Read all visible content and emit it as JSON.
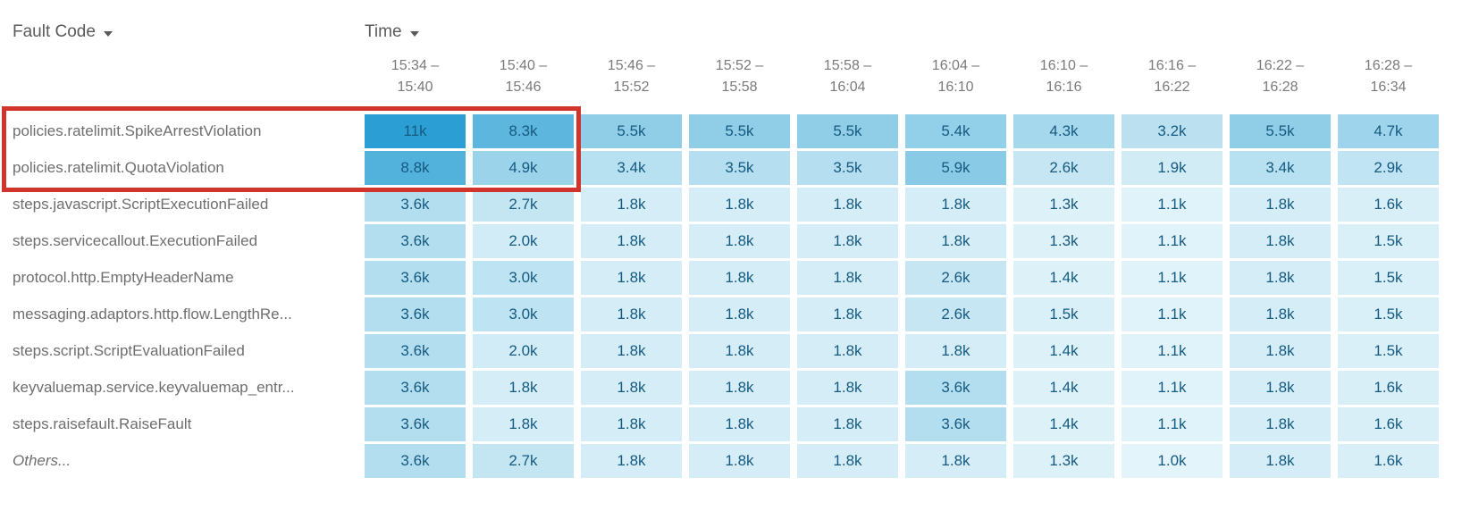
{
  "header": {
    "fault_code_label": "Fault Code",
    "time_label": "Time"
  },
  "colors": {
    "cell_text": "#155a80",
    "row_label_text": "#6e6e6e",
    "time_header_text": "#7a7a7a",
    "sort_header_text": "#5a5a5a"
  },
  "annotation": {
    "type": "highlight-rectangle",
    "color": "#d0342c",
    "highlighted_rows": [
      "policies.ratelimit.SpikeArrestViolation",
      "policies.ratelimit.QuotaViolation"
    ],
    "highlighted_columns": [
      "15:34 – 15:40",
      "15:40 – 15:46"
    ]
  },
  "chart_data": {
    "type": "heatmap",
    "x_axis_label": "Time",
    "y_axis_label": "Fault Code",
    "legend": "none",
    "grid": "off",
    "x_categories": [
      "15:34 – 15:40",
      "15:40 – 15:46",
      "15:46 – 15:52",
      "15:52 – 15:58",
      "15:58 – 16:04",
      "16:04 – 16:10",
      "16:10 – 16:16",
      "16:16 – 16:22",
      "16:22 – 16:28",
      "16:28 – 16:34"
    ],
    "y_categories": [
      "policies.ratelimit.SpikeArrestViolation",
      "policies.ratelimit.QuotaViolation",
      "steps.javascript.ScriptExecutionFailed",
      "steps.servicecallout.ExecutionFailed",
      "protocol.http.EmptyHeaderName",
      "messaging.adaptors.http.flow.LengthRe...",
      "steps.script.ScriptEvaluationFailed",
      "keyvaluemap.service.keyvaluemap_entr...",
      "steps.raisefault.RaiseFault",
      "Others..."
    ],
    "last_row_italic": true,
    "values": [
      [
        11000,
        8300,
        5500,
        5500,
        5500,
        5400,
        4300,
        3200,
        5500,
        4700
      ],
      [
        8800,
        4900,
        3400,
        3500,
        3500,
        5900,
        2600,
        1900,
        3400,
        2900
      ],
      [
        3600,
        2700,
        1800,
        1800,
        1800,
        1800,
        1300,
        1100,
        1800,
        1600
      ],
      [
        3600,
        2000,
        1800,
        1800,
        1800,
        1800,
        1300,
        1100,
        1800,
        1500
      ],
      [
        3600,
        3000,
        1800,
        1800,
        1800,
        2600,
        1400,
        1100,
        1800,
        1500
      ],
      [
        3600,
        3000,
        1800,
        1800,
        1800,
        2600,
        1500,
        1100,
        1800,
        1500
      ],
      [
        3600,
        2000,
        1800,
        1800,
        1800,
        1800,
        1400,
        1100,
        1800,
        1500
      ],
      [
        3600,
        1800,
        1800,
        1800,
        1800,
        3600,
        1400,
        1100,
        1800,
        1600
      ],
      [
        3600,
        1800,
        1800,
        1800,
        1800,
        3600,
        1400,
        1100,
        1800,
        1600
      ],
      [
        3600,
        2700,
        1800,
        1800,
        1800,
        1800,
        1300,
        1000,
        1800,
        1600
      ]
    ],
    "value_labels": [
      [
        "11k",
        "8.3k",
        "5.5k",
        "5.5k",
        "5.5k",
        "5.4k",
        "4.3k",
        "3.2k",
        "5.5k",
        "4.7k"
      ],
      [
        "8.8k",
        "4.9k",
        "3.4k",
        "3.5k",
        "3.5k",
        "5.9k",
        "2.6k",
        "1.9k",
        "3.4k",
        "2.9k"
      ],
      [
        "3.6k",
        "2.7k",
        "1.8k",
        "1.8k",
        "1.8k",
        "1.8k",
        "1.3k",
        "1.1k",
        "1.8k",
        "1.6k"
      ],
      [
        "3.6k",
        "2.0k",
        "1.8k",
        "1.8k",
        "1.8k",
        "1.8k",
        "1.3k",
        "1.1k",
        "1.8k",
        "1.5k"
      ],
      [
        "3.6k",
        "3.0k",
        "1.8k",
        "1.8k",
        "1.8k",
        "2.6k",
        "1.4k",
        "1.1k",
        "1.8k",
        "1.5k"
      ],
      [
        "3.6k",
        "3.0k",
        "1.8k",
        "1.8k",
        "1.8k",
        "2.6k",
        "1.5k",
        "1.1k",
        "1.8k",
        "1.5k"
      ],
      [
        "3.6k",
        "2.0k",
        "1.8k",
        "1.8k",
        "1.8k",
        "1.8k",
        "1.4k",
        "1.1k",
        "1.8k",
        "1.5k"
      ],
      [
        "3.6k",
        "1.8k",
        "1.8k",
        "1.8k",
        "1.8k",
        "3.6k",
        "1.4k",
        "1.1k",
        "1.8k",
        "1.6k"
      ],
      [
        "3.6k",
        "1.8k",
        "1.8k",
        "1.8k",
        "1.8k",
        "3.6k",
        "1.4k",
        "1.1k",
        "1.8k",
        "1.6k"
      ],
      [
        "3.6k",
        "2.7k",
        "1.8k",
        "1.8k",
        "1.8k",
        "1.8k",
        "1.3k",
        "1.0k",
        "1.8k",
        "1.6k"
      ]
    ],
    "color_scale": {
      "min_value": 1000,
      "max_value": 11000,
      "min_color": "#e3f4fa",
      "max_color": "#2b9fd3"
    }
  }
}
